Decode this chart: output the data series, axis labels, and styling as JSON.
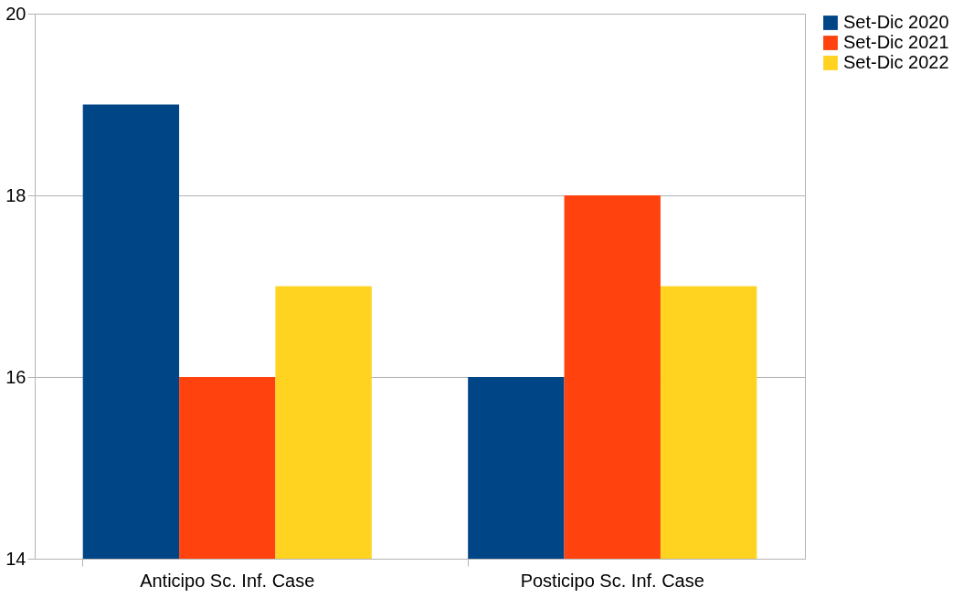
{
  "chart_data": {
    "type": "bar",
    "categories": [
      "Anticipo Sc. Inf. Case",
      "Posticipo Sc. Inf. Case"
    ],
    "series": [
      {
        "name": "Set-Dic 2020",
        "color": "#004586",
        "values": [
          19,
          16
        ]
      },
      {
        "name": "Set-Dic 2021",
        "color": "#ff420e",
        "values": [
          16,
          18
        ]
      },
      {
        "name": "Set-Dic 2022",
        "color": "#ffd320",
        "values": [
          17,
          17
        ]
      }
    ],
    "ylim": [
      14,
      20
    ],
    "yticks": [
      14,
      16,
      18,
      20
    ],
    "grid": "y",
    "legend": "right"
  }
}
